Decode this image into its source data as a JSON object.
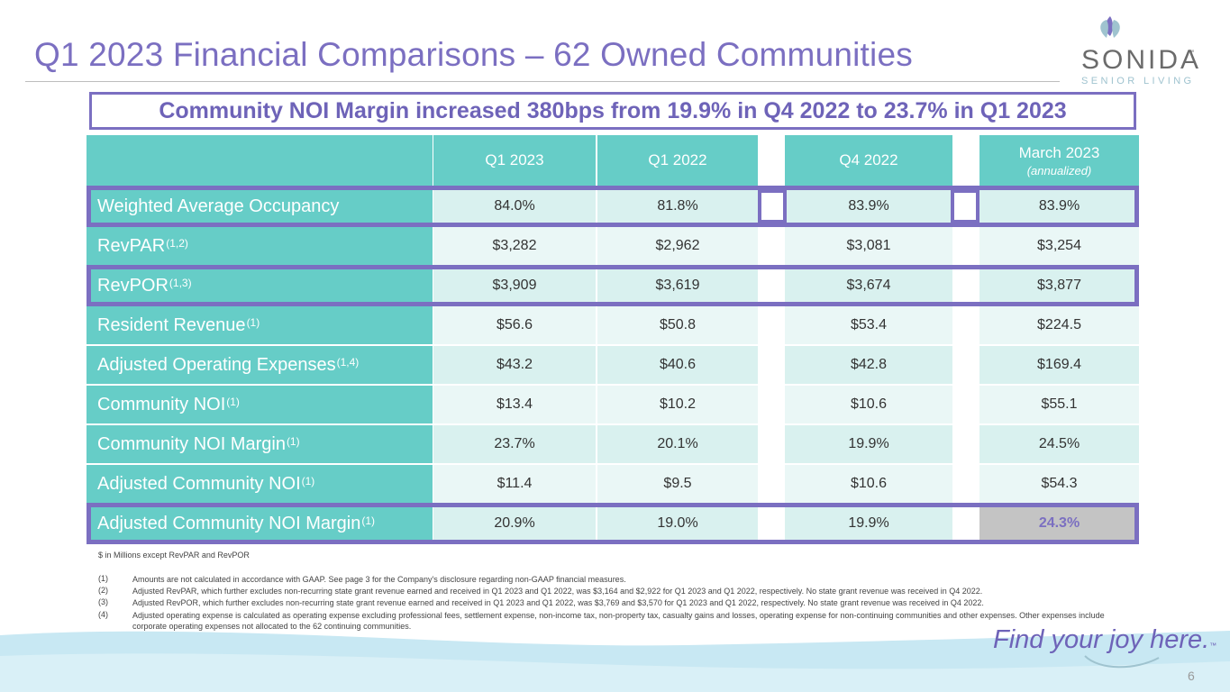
{
  "title": "Q1 2023 Financial Comparisons – 62 Owned Communities",
  "logo": {
    "name": "SONIDA",
    "tm": "™",
    "subtitle": "SENIOR LIVING"
  },
  "callout": "Community NOI Margin increased 380bps from 19.9% in Q4 2022 to 23.7% in Q1 2023",
  "columns": [
    {
      "label": "Q1 2023",
      "sub": ""
    },
    {
      "label": "Q1 2022",
      "sub": ""
    },
    {
      "label": "Q4 2022",
      "sub": ""
    },
    {
      "label": "March 2023",
      "sub": "(annualized)"
    }
  ],
  "rows": [
    {
      "label": "Weighted Average Occupancy",
      "sup": "",
      "values": [
        "84.0%",
        "81.8%",
        "83.9%",
        "83.9%"
      ]
    },
    {
      "label": "RevPAR",
      "sup": "(1,2)",
      "values": [
        "$3,282",
        "$2,962",
        "$3,081",
        "$3,254"
      ]
    },
    {
      "label": "RevPOR",
      "sup": "(1,3)",
      "values": [
        "$3,909",
        "$3,619",
        "$3,674",
        "$3,877"
      ]
    },
    {
      "label": "Resident Revenue",
      "sup": "(1)",
      "values": [
        "$56.6",
        "$50.8",
        "$53.4",
        "$224.5"
      ]
    },
    {
      "label": "Adjusted Operating Expenses",
      "sup": "(1,4)",
      "values": [
        "$43.2",
        "$40.6",
        "$42.8",
        "$169.4"
      ]
    },
    {
      "label": "Community NOI",
      "sup": "(1)",
      "values": [
        "$13.4",
        "$10.2",
        "$10.6",
        "$55.1"
      ]
    },
    {
      "label": "Community NOI Margin",
      "sup": "(1)",
      "values": [
        "23.7%",
        "20.1%",
        "19.9%",
        "24.5%"
      ]
    },
    {
      "label": "Adjusted Community NOI",
      "sup": "(1)",
      "values": [
        "$11.4",
        "$9.5",
        "$10.6",
        "$54.3"
      ]
    },
    {
      "label": "Adjusted Community NOI Margin",
      "sup": "(1)",
      "values": [
        "20.9%",
        "19.0%",
        "19.9%",
        "24.3%"
      ]
    }
  ],
  "note": "$ in Millions except RevPAR and RevPOR",
  "footnotes": [
    {
      "num": "(1)",
      "text": "Amounts are not calculated in accordance with GAAP. See page 3 for the Company's disclosure regarding non-GAAP financial measures."
    },
    {
      "num": "(2)",
      "text": "Adjusted RevPAR, which further excludes non-recurring state grant revenue earned and received in Q1 2023 and Q1 2022, was $3,164 and $2,922 for Q1 2023 and Q1 2022, respectively.  No state grant revenue was received in Q4 2022."
    },
    {
      "num": "(3)",
      "text": "Adjusted RevPOR, which further excludes non-recurring state grant revenue earned and received in Q1 2023 and Q1 2022, was $3,769 and $3,570 for Q1 2023 and Q1 2022, respectively.  No state grant revenue was received in Q4 2022."
    },
    {
      "num": "(4)",
      "text": "Adjusted operating expense is calculated as operating expense excluding professional fees, settlement expense, non-income tax, non-property tax, casualty gains and losses, operating expense for non-continuing communities and other expenses.  Other expenses include corporate operating expenses not allocated to the 62 continuing communities."
    }
  ],
  "slogan": "Find your joy here.",
  "slogan_tm": "™",
  "page_number": "6",
  "colors": {
    "purple": "#7b6fc1",
    "teal": "#66cdc7",
    "light_cell": "#eaf7f6",
    "alt_cell": "#d9f1ef",
    "gray_cell": "#c4c4c4"
  }
}
